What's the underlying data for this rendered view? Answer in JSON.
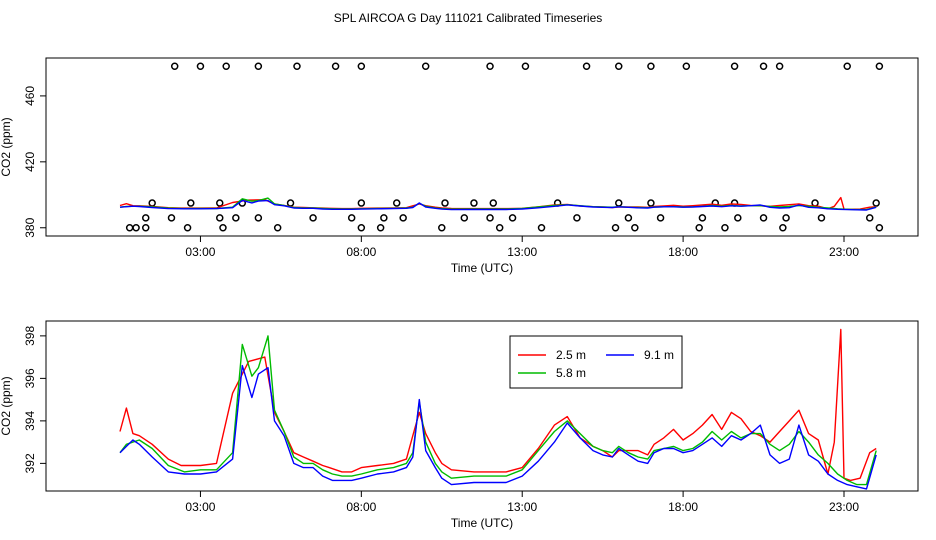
{
  "figure_title": "SPL AIRCOA G  Day 111021  Calibrated Timeseries",
  "chart_data": [
    {
      "type": "scatter",
      "title": "",
      "xlabel": "Time (UTC)",
      "ylabel": "CO2 (ppm)",
      "xlim": [
        -1.8,
        25.3
      ],
      "ylim": [
        375,
        483
      ],
      "xticks": [
        3,
        8,
        13,
        18,
        23
      ],
      "xtick_labels": [
        "03:00",
        "08:00",
        "13:00",
        "18:00",
        "23:00"
      ],
      "yticks": [
        380,
        420,
        460
      ],
      "ytick_labels": [
        "380",
        "420",
        "460"
      ],
      "grid": false,
      "points": [
        [
          1.0,
          380
        ],
        [
          1.3,
          380
        ],
        [
          2.2,
          478
        ],
        [
          3.0,
          478
        ],
        [
          3.8,
          478
        ],
        [
          4.8,
          478
        ],
        [
          6.0,
          478
        ],
        [
          7.2,
          478
        ],
        [
          8.0,
          478
        ],
        [
          10.0,
          478
        ],
        [
          12.0,
          478
        ],
        [
          13.1,
          478
        ],
        [
          15.0,
          478
        ],
        [
          16.0,
          478
        ],
        [
          17.0,
          478
        ],
        [
          18.1,
          478
        ],
        [
          19.6,
          478
        ],
        [
          20.5,
          478
        ],
        [
          21.0,
          478
        ],
        [
          23.1,
          478
        ],
        [
          24.1,
          478
        ],
        [
          1.5,
          395
        ],
        [
          2.7,
          395
        ],
        [
          3.6,
          395
        ],
        [
          4.3,
          395
        ],
        [
          5.8,
          395
        ],
        [
          8.0,
          395
        ],
        [
          9.1,
          395
        ],
        [
          10.6,
          395
        ],
        [
          11.5,
          395
        ],
        [
          12.1,
          395
        ],
        [
          14.1,
          395
        ],
        [
          16.0,
          395
        ],
        [
          17.0,
          395
        ],
        [
          19.0,
          395
        ],
        [
          19.6,
          395
        ],
        [
          22.1,
          395
        ],
        [
          24.0,
          395
        ],
        [
          1.3,
          386
        ],
        [
          2.1,
          386
        ],
        [
          3.6,
          386
        ],
        [
          4.1,
          386
        ],
        [
          4.8,
          386
        ],
        [
          6.5,
          386
        ],
        [
          7.7,
          386
        ],
        [
          8.7,
          386
        ],
        [
          9.3,
          386
        ],
        [
          11.2,
          386
        ],
        [
          12.0,
          386
        ],
        [
          12.7,
          386
        ],
        [
          14.7,
          386
        ],
        [
          16.3,
          386
        ],
        [
          17.3,
          386
        ],
        [
          18.6,
          386
        ],
        [
          19.7,
          386
        ],
        [
          20.5,
          386
        ],
        [
          21.2,
          386
        ],
        [
          22.3,
          386
        ],
        [
          23.8,
          386
        ],
        [
          0.8,
          380
        ],
        [
          2.6,
          380
        ],
        [
          3.7,
          380
        ],
        [
          5.4,
          380
        ],
        [
          8.0,
          380
        ],
        [
          8.6,
          380
        ],
        [
          10.5,
          380
        ],
        [
          12.3,
          380
        ],
        [
          13.6,
          380
        ],
        [
          15.9,
          380
        ],
        [
          16.5,
          380
        ],
        [
          18.5,
          380
        ],
        [
          19.3,
          380
        ],
        [
          21.1,
          380
        ],
        [
          24.1,
          380
        ]
      ]
    },
    {
      "type": "line",
      "title": "",
      "xlabel": "Time (UTC)",
      "ylabel": "CO2 (ppm)",
      "xlim": [
        -1.8,
        25.3
      ],
      "ylim": [
        390.7,
        398.7
      ],
      "xticks": [
        3,
        8,
        13,
        18,
        23
      ],
      "xtick_labels": [
        "03:00",
        "08:00",
        "13:00",
        "18:00",
        "23:00"
      ],
      "yticks": [
        392,
        394,
        396,
        398
      ],
      "ytick_labels": [
        "392",
        "394",
        "396",
        "398"
      ],
      "grid": false,
      "legend": [
        "2.5 m",
        "9.1 m",
        "5.8 m"
      ],
      "legend_position": "top-right",
      "series": [
        {
          "name": "2.5 m",
          "color": "#ff0000",
          "x": [
            0.5,
            0.7,
            0.9,
            1.1,
            1.5,
            2.0,
            2.4,
            3.0,
            3.5,
            4.0,
            4.5,
            5.0,
            5.3,
            5.6,
            5.9,
            6.2,
            6.5,
            6.8,
            7.0,
            7.4,
            7.7,
            8.0,
            8.5,
            9.0,
            9.4,
            9.6,
            9.8,
            10.0,
            10.3,
            10.5,
            10.8,
            11.5,
            12.5,
            13.0,
            13.5,
            14.0,
            14.4,
            14.8,
            15.2,
            15.5,
            15.8,
            16.0,
            16.3,
            16.6,
            16.9,
            17.1,
            17.4,
            17.7,
            18.0,
            18.3,
            18.6,
            18.9,
            19.2,
            19.5,
            19.8,
            20.1,
            20.4,
            20.7,
            21.0,
            21.3,
            21.6,
            21.9,
            22.2,
            22.5,
            22.7,
            22.9,
            23.0,
            23.2,
            23.5,
            23.8,
            24.0
          ],
          "values": [
            393.5,
            394.6,
            393.4,
            393.3,
            392.9,
            392.2,
            391.9,
            391.9,
            392.0,
            395.3,
            396.8,
            397.0,
            394.4,
            393.5,
            392.5,
            392.3,
            392.1,
            391.9,
            391.8,
            391.6,
            391.6,
            391.8,
            391.9,
            392.0,
            392.2,
            393.3,
            394.4,
            393.4,
            392.5,
            392.0,
            391.7,
            391.6,
            391.6,
            391.8,
            392.7,
            393.8,
            394.2,
            393.2,
            392.8,
            392.6,
            392.3,
            392.6,
            392.6,
            392.6,
            392.4,
            392.9,
            393.2,
            393.6,
            393.1,
            393.4,
            393.8,
            394.3,
            393.6,
            394.4,
            394.1,
            393.5,
            393.3,
            393.0,
            393.5,
            394.0,
            394.5,
            393.4,
            393.1,
            391.5,
            393.0,
            398.3,
            391.3,
            391.2,
            391.3,
            392.5,
            392.7
          ]
        },
        {
          "name": "5.8 m",
          "color": "#00bb00",
          "x": [
            0.5,
            0.7,
            0.9,
            1.1,
            1.5,
            2.0,
            2.5,
            3.0,
            3.5,
            4.0,
            4.3,
            4.6,
            4.8,
            5.1,
            5.3,
            5.6,
            5.9,
            6.2,
            6.5,
            6.8,
            7.1,
            7.4,
            7.7,
            8.0,
            8.5,
            9.0,
            9.4,
            9.6,
            9.8,
            10.0,
            10.3,
            10.5,
            10.8,
            11.5,
            12.5,
            13.0,
            13.5,
            14.0,
            14.4,
            14.8,
            15.2,
            15.5,
            15.8,
            16.0,
            16.3,
            16.6,
            16.9,
            17.1,
            17.4,
            17.7,
            18.0,
            18.3,
            18.6,
            18.9,
            19.2,
            19.5,
            19.8,
            20.1,
            20.4,
            20.7,
            21.0,
            21.3,
            21.6,
            21.9,
            22.2,
            22.5,
            22.8,
            23.1,
            23.4,
            23.7,
            24.0
          ],
          "values": [
            392.5,
            392.9,
            393.0,
            393.1,
            392.7,
            391.9,
            391.6,
            391.7,
            391.7,
            392.5,
            397.6,
            396.1,
            396.5,
            398.0,
            394.5,
            393.5,
            392.3,
            392.0,
            392.0,
            391.7,
            391.5,
            391.4,
            391.4,
            391.5,
            391.7,
            391.8,
            392.0,
            392.5,
            394.9,
            393.0,
            392.0,
            391.6,
            391.3,
            391.4,
            391.4,
            391.7,
            392.6,
            393.5,
            394.0,
            393.4,
            392.8,
            392.6,
            392.5,
            392.8,
            392.5,
            392.3,
            392.2,
            392.6,
            392.7,
            392.8,
            392.6,
            392.7,
            393.0,
            393.5,
            393.1,
            393.5,
            393.2,
            393.4,
            393.4,
            392.9,
            392.6,
            392.9,
            393.5,
            393.0,
            392.4,
            392.0,
            391.5,
            391.2,
            391.0,
            391.0,
            392.6
          ]
        },
        {
          "name": "9.1 m",
          "color": "#0000ff",
          "x": [
            0.5,
            0.7,
            0.9,
            1.1,
            1.5,
            2.0,
            2.5,
            3.0,
            3.5,
            4.0,
            4.3,
            4.6,
            4.8,
            5.1,
            5.3,
            5.6,
            5.9,
            6.2,
            6.5,
            6.8,
            7.1,
            7.4,
            7.7,
            8.0,
            8.5,
            9.0,
            9.4,
            9.6,
            9.8,
            10.0,
            10.3,
            10.5,
            10.8,
            11.5,
            12.5,
            13.0,
            13.5,
            14.0,
            14.4,
            14.8,
            15.2,
            15.5,
            15.8,
            16.0,
            16.3,
            16.6,
            16.9,
            17.1,
            17.4,
            17.7,
            18.0,
            18.3,
            18.6,
            18.9,
            19.2,
            19.5,
            19.8,
            20.1,
            20.4,
            20.7,
            21.0,
            21.3,
            21.6,
            21.9,
            22.2,
            22.5,
            22.8,
            23.1,
            23.4,
            23.7,
            24.0
          ],
          "values": [
            392.5,
            392.8,
            393.1,
            392.9,
            392.3,
            391.6,
            391.5,
            391.5,
            391.6,
            392.2,
            396.6,
            395.1,
            396.2,
            396.5,
            394.0,
            393.3,
            392.0,
            391.8,
            391.8,
            391.4,
            391.2,
            391.2,
            391.2,
            391.3,
            391.5,
            391.6,
            391.8,
            392.3,
            395.0,
            392.6,
            391.8,
            391.3,
            391.0,
            391.1,
            391.1,
            391.4,
            392.1,
            393.0,
            393.9,
            393.2,
            392.6,
            392.4,
            392.3,
            392.7,
            392.4,
            392.1,
            392.0,
            392.5,
            392.7,
            392.7,
            392.5,
            392.6,
            392.9,
            393.2,
            392.8,
            393.3,
            393.1,
            393.4,
            393.8,
            392.4,
            392.0,
            392.2,
            393.8,
            392.4,
            392.1,
            391.5,
            391.2,
            391.0,
            390.9,
            390.8,
            392.4
          ]
        }
      ]
    }
  ]
}
